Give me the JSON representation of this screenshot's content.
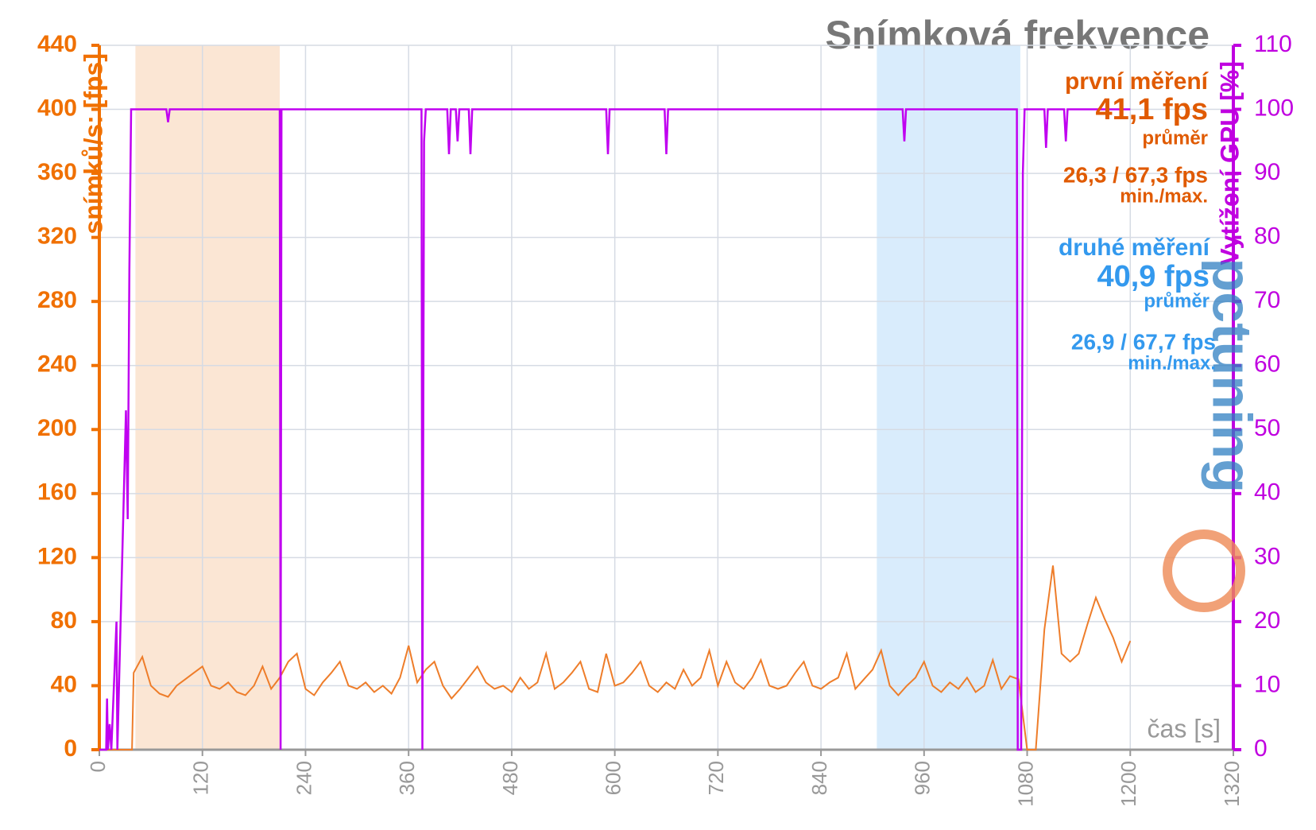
{
  "chart_data": {
    "type": "line",
    "title": "Snímková frekvence",
    "x_label": "čas [s]",
    "y_label": "snímků/s: [fps]",
    "y2_label": "Vytížení GPU [%]",
    "logo": "pctuning",
    "xlim": [
      0,
      1320
    ],
    "xticks": [
      0,
      120,
      240,
      360,
      480,
      600,
      720,
      840,
      960,
      1080,
      1200,
      1320
    ],
    "ylim": [
      0,
      440
    ],
    "yticks": [
      0,
      40,
      80,
      120,
      160,
      200,
      240,
      280,
      320,
      360,
      400,
      440
    ],
    "y2lim": [
      0,
      110
    ],
    "y2ticks": [
      0,
      10,
      20,
      30,
      40,
      50,
      60,
      70,
      80,
      90,
      100,
      110
    ],
    "grid": true,
    "shaded_regions": [
      {
        "start": 42,
        "end": 210,
        "color": "#fbe6d4"
      },
      {
        "start": 905,
        "end": 1072,
        "color": "#d9ecfc"
      }
    ],
    "series": [
      {
        "name": "fps",
        "color": "#ee7d2a",
        "axis": "y",
        "x": [
          0,
          10,
          20,
          30,
          38,
          40,
          50,
          60,
          70,
          80,
          90,
          100,
          110,
          120,
          130,
          140,
          150,
          160,
          170,
          180,
          190,
          200,
          210,
          220,
          230,
          240,
          250,
          260,
          270,
          280,
          290,
          300,
          310,
          320,
          330,
          340,
          350,
          360,
          370,
          380,
          390,
          400,
          410,
          420,
          430,
          440,
          450,
          460,
          470,
          480,
          490,
          500,
          510,
          520,
          530,
          540,
          550,
          560,
          570,
          580,
          590,
          600,
          610,
          620,
          630,
          640,
          650,
          660,
          670,
          680,
          690,
          700,
          710,
          720,
          730,
          740,
          750,
          760,
          770,
          780,
          790,
          800,
          810,
          820,
          830,
          840,
          850,
          860,
          870,
          880,
          890,
          900,
          910,
          920,
          930,
          940,
          950,
          960,
          970,
          980,
          990,
          1000,
          1010,
          1020,
          1030,
          1040,
          1050,
          1060,
          1070,
          1080,
          1090,
          1100,
          1110,
          1120,
          1130,
          1140,
          1150,
          1160,
          1170,
          1180,
          1190,
          1200
        ],
        "values": [
          0,
          0,
          0,
          0,
          0,
          48,
          58,
          40,
          35,
          33,
          40,
          44,
          48,
          52,
          40,
          38,
          42,
          36,
          34,
          40,
          52,
          38,
          45,
          55,
          60,
          38,
          34,
          42,
          48,
          55,
          40,
          38,
          42,
          36,
          40,
          35,
          45,
          65,
          42,
          50,
          55,
          40,
          32,
          38,
          45,
          52,
          42,
          38,
          40,
          36,
          45,
          38,
          42,
          60,
          38,
          42,
          48,
          55,
          38,
          36,
          60,
          40,
          42,
          48,
          55,
          40,
          36,
          42,
          38,
          50,
          40,
          45,
          62,
          40,
          55,
          42,
          38,
          45,
          56,
          40,
          38,
          40,
          48,
          55,
          40,
          38,
          42,
          45,
          60,
          38,
          44,
          50,
          62,
          40,
          34,
          40,
          45,
          55,
          40,
          36,
          42,
          38,
          45,
          36,
          40,
          56,
          38,
          46,
          44,
          0,
          0,
          75,
          115,
          60,
          55,
          60,
          78,
          95,
          82,
          70,
          55,
          68
        ]
      },
      {
        "name": "GPU",
        "color": "#c000f0",
        "axis": "y2",
        "x": [
          0,
          8,
          9,
          10,
          12,
          14,
          20,
          21,
          31,
          33,
          35,
          37,
          78,
          80,
          82,
          210,
          211,
          212,
          375,
          376,
          378,
          380,
          405,
          407,
          409,
          415,
          417,
          419,
          430,
          432,
          434,
          590,
          592,
          594,
          658,
          660,
          662,
          935,
          937,
          939,
          1068,
          1069,
          1073,
          1075,
          1077,
          1100,
          1102,
          1104,
          1123,
          1125,
          1127,
          1200
        ],
        "values": [
          0,
          0,
          8,
          0,
          4,
          0,
          20,
          0,
          53,
          36,
          75,
          100,
          100,
          98,
          100,
          100,
          0,
          100,
          100,
          0,
          95,
          100,
          100,
          93,
          100,
          100,
          95,
          100,
          100,
          93,
          100,
          100,
          93,
          100,
          100,
          93,
          100,
          100,
          95,
          100,
          100,
          0,
          0,
          90,
          100,
          100,
          94,
          100,
          100,
          95,
          100,
          100
        ]
      }
    ],
    "annotations": [
      {
        "text": "první měření",
        "color": "#e05a00"
      },
      {
        "text": "41,1 fps",
        "color": "#e05a00"
      },
      {
        "text": "průměr",
        "color": "#e05a00"
      },
      {
        "text": "26,3 / 67,3 fps",
        "color": "#e05a00"
      },
      {
        "text": "min./max.",
        "color": "#e05a00"
      },
      {
        "text": "druhé měření",
        "color": "#3399ee"
      },
      {
        "text": "40,9 fps",
        "color": "#3399ee"
      },
      {
        "text": "průměr",
        "color": "#3399ee"
      },
      {
        "text": "26,9 / 67,7 fps",
        "color": "#3399ee"
      },
      {
        "text": "min./max.",
        "color": "#3399ee"
      }
    ]
  }
}
